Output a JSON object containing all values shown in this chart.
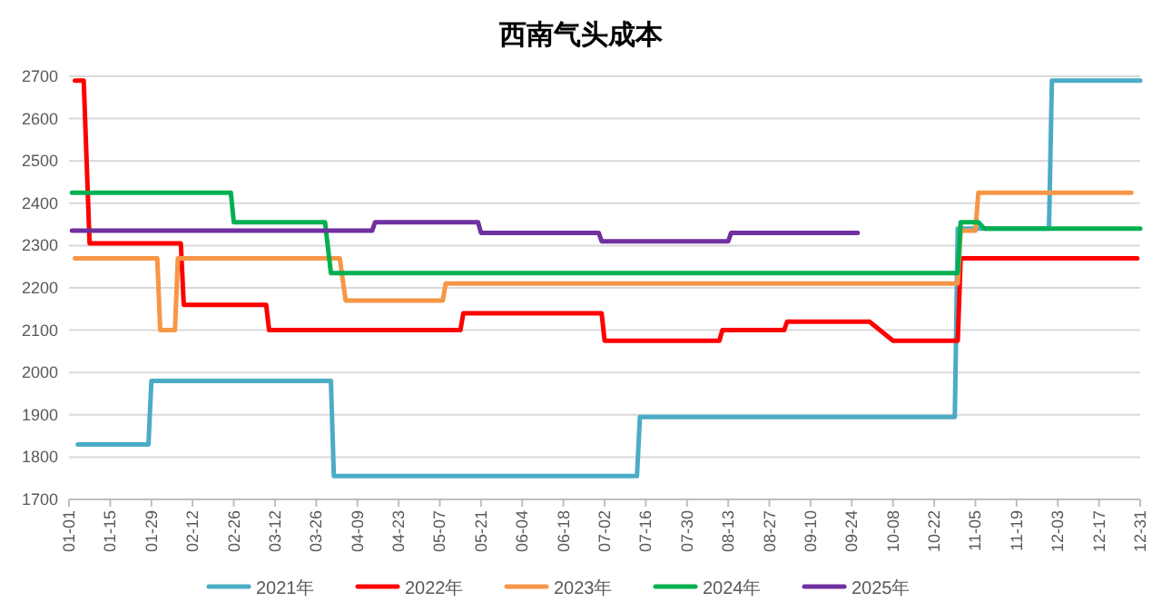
{
  "chart_data": {
    "type": "line",
    "title": "西南气头成本",
    "xlim": [
      "--01-01",
      "--12-31"
    ],
    "xticks": [
      {
        "value": "--01-01",
        "label": "01-01"
      },
      {
        "value": "--01-15",
        "label": "01-15"
      },
      {
        "value": "--01-29",
        "label": "01-29"
      },
      {
        "value": "--02-12",
        "label": "02-12"
      },
      {
        "value": "--02-26",
        "label": "02-26"
      },
      {
        "value": "--03-12",
        "label": "03-12"
      },
      {
        "value": "--03-26",
        "label": "03-26"
      },
      {
        "value": "--04-09",
        "label": "04-09"
      },
      {
        "value": "--04-23",
        "label": "04-23"
      },
      {
        "value": "--05-07",
        "label": "05-07"
      },
      {
        "value": "--05-21",
        "label": "05-21"
      },
      {
        "value": "--06-04",
        "label": "06-04"
      },
      {
        "value": "--06-18",
        "label": "06-18"
      },
      {
        "value": "--07-02",
        "label": "07-02"
      },
      {
        "value": "--07-16",
        "label": "07-16"
      },
      {
        "value": "--07-30",
        "label": "07-30"
      },
      {
        "value": "--08-13",
        "label": "08-13"
      },
      {
        "value": "--08-27",
        "label": "08-27"
      },
      {
        "value": "--09-10",
        "label": "09-10"
      },
      {
        "value": "--09-24",
        "label": "09-24"
      },
      {
        "value": "--10-08",
        "label": "10-08"
      },
      {
        "value": "--10-22",
        "label": "10-22"
      },
      {
        "value": "--11-05",
        "label": "11-05"
      },
      {
        "value": "--11-19",
        "label": "11-19"
      },
      {
        "value": "--12-03",
        "label": "12-03"
      },
      {
        "value": "--12-17",
        "label": "12-17"
      },
      {
        "value": "--12-31",
        "label": "12-31"
      }
    ],
    "ylim": [
      1700,
      2700
    ],
    "yticks": [
      1700,
      1800,
      1900,
      2000,
      2100,
      2200,
      2300,
      2400,
      2500,
      2600,
      2700
    ],
    "grid": "y",
    "legend": "bottom",
    "marker": "none",
    "line_style": "solid",
    "series": [
      {
        "name": "2021年",
        "color": "#4bacc6",
        "x": [
          "--01-04",
          "--01-28",
          "--01-29",
          "--03-31",
          "--04-01",
          "--07-13",
          "--07-14",
          "--10-29",
          "--10-30",
          "--11-30",
          "--12-01",
          "--12-31"
        ],
        "values": [
          1830,
          1830,
          1980,
          1980,
          1755,
          1755,
          1895,
          1895,
          2340,
          2340,
          2690,
          2690
        ]
      },
      {
        "name": "2022年",
        "color": "#ff0000",
        "x": [
          "--01-03",
          "--01-06",
          "--01-08",
          "--02-08",
          "--02-09",
          "--03-09",
          "--03-10",
          "--05-14",
          "--05-15",
          "--07-01",
          "--07-02",
          "--08-10",
          "--08-11",
          "--09-01",
          "--09-02",
          "--09-30",
          "--10-08",
          "--10-30",
          "--10-31",
          "--12-30"
        ],
        "values": [
          2690,
          2690,
          2305,
          2305,
          2160,
          2160,
          2100,
          2100,
          2140,
          2140,
          2075,
          2075,
          2100,
          2100,
          2120,
          2120,
          2075,
          2075,
          2270,
          2270
        ]
      },
      {
        "name": "2023年",
        "color": "#f79646",
        "x": [
          "--01-03",
          "--01-31",
          "--02-01",
          "--02-06",
          "--02-07",
          "--04-03",
          "--04-05",
          "--05-08",
          "--05-09",
          "--10-30",
          "--10-31",
          "--11-05",
          "--11-06",
          "--12-28"
        ],
        "values": [
          2270,
          2270,
          2100,
          2100,
          2270,
          2270,
          2170,
          2170,
          2210,
          2210,
          2335,
          2335,
          2425,
          2425
        ]
      },
      {
        "name": "2024年",
        "color": "#00b050",
        "x": [
          "--01-02",
          "--02-25",
          "--02-26",
          "--03-29",
          "--03-31",
          "--10-30",
          "--10-31",
          "--11-06",
          "--11-08",
          "--12-31"
        ],
        "values": [
          2425,
          2425,
          2355,
          2355,
          2235,
          2235,
          2355,
          2355,
          2340,
          2340
        ]
      },
      {
        "name": "2025年",
        "color": "#7030a0",
        "x": [
          "--01-02",
          "--04-14",
          "--04-15",
          "--05-20",
          "--05-21",
          "--06-30",
          "--07-01",
          "--08-13",
          "--08-14",
          "--09-26"
        ],
        "values": [
          2335,
          2335,
          2355,
          2355,
          2330,
          2330,
          2310,
          2310,
          2330,
          2330
        ]
      }
    ]
  }
}
